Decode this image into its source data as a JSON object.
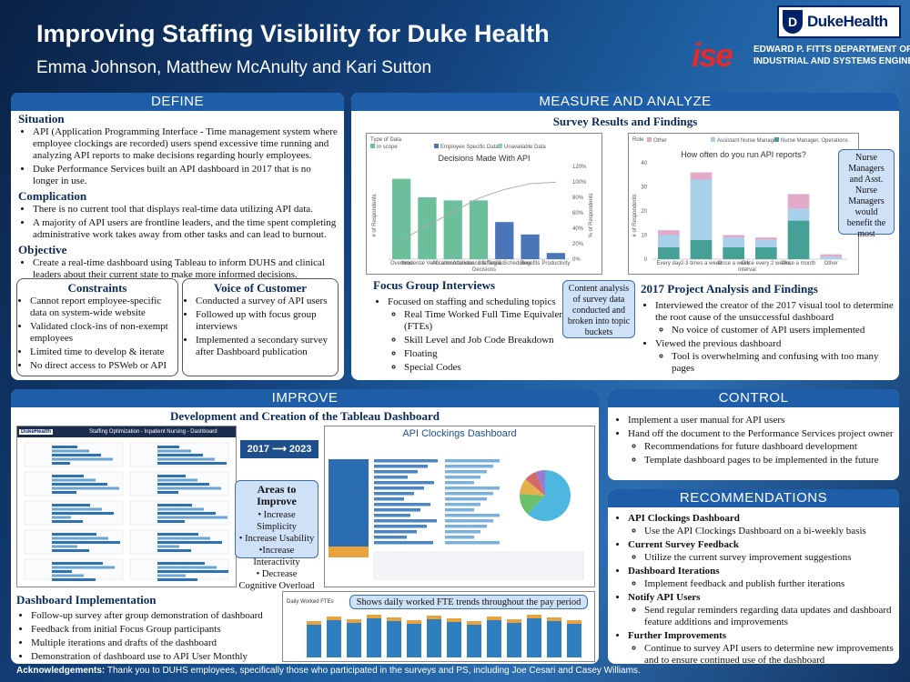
{
  "header": {
    "title": "Improving Staffing Visibility for Duke Health",
    "authors": "Emma Johnson, Matthew McAnulty and Kari Sutton",
    "duke_logo_text": "DukeHealth",
    "ise_logo_text": "ise",
    "dept_line1": "EDWARD P. FITTS DEPARTMENT OF",
    "dept_line2": "INDUSTRIAL AND SYSTEMS ENGINEERING"
  },
  "define": {
    "title": "DEFINE",
    "situation_title": "Situation",
    "situation": [
      "API (Application Programming Interface - Time management system where employee clockings are recorded) users spend excessive time running and analyzing API reports to make decisions regarding hourly employees.",
      "Duke Performance Services built an API dashboard in 2017 that is no longer in use."
    ],
    "complication_title": "Complication",
    "complication": [
      "There is no current tool that displays real-time data utilizing API data.",
      "A majority of API users are frontline leaders, and the time spent completing administrative work takes away from other tasks and can lead to burnout."
    ],
    "objective_title": "Objective",
    "objective": [
      "Create a real-time dashboard using Tableau to inform DUHS and clinical leaders about their current state to make more informed decisions."
    ],
    "constraints_title": "Constraints",
    "constraints": [
      "Cannot report employee-specific data on system-wide website",
      "Validated clock-ins of non-exempt employees",
      "Limited time to develop & iterate",
      "No direct access to PSWeb or API"
    ],
    "voc_title": "Voice of Customer",
    "voc": [
      "Conducted a survey of API users",
      "Followed up with focus group interviews",
      "Implemented a secondary survey after Dashboard publication"
    ]
  },
  "measure": {
    "title": "MEASURE AND ANALYZE",
    "survey_title": "Survey Results and Findings",
    "focus_title": "Focus Group Interviews",
    "focus_main": "Focused on staffing and scheduling topics",
    "focus_items": [
      "Real Time Worked Full Time Equivalents (FTEs)",
      "Skill Level and Job Code Breakdown",
      "Floating",
      "Special Codes"
    ],
    "callout_content": "Content analysis of survey data conducted and broken into topic buckets",
    "callout_nurse": "Nurse Managers and Asst. Nurse Managers would benefit the most",
    "project_title": "2017 Project Analysis and Findings",
    "project_items": [
      {
        "text": "Interviewed the creator of the 2017 visual tool to determine the root cause of the unsuccessful dashboard",
        "sub": [
          "No voice of customer of API users implemented"
        ]
      },
      {
        "text": "Viewed the previous dashboard",
        "sub": [
          "Tool is overwhelming and confusing with too many pages"
        ]
      }
    ]
  },
  "chart1": {
    "legend_title": "Type of Data",
    "legend": [
      "In scope",
      "Employee Specific Data",
      "Unavailable Data"
    ],
    "title": "Decisions Made With API",
    "xlabel": "Decisions",
    "ylabel": "# of Respondents",
    "y2label": "% of Respondents",
    "categories": [
      "Overtime",
      "Incidental Verification",
      "Accommodations",
      "Attendance & Tardies",
      "Staffing & Scheduling",
      "Benefits",
      "Productivity"
    ],
    "values": [
      26,
      20,
      19,
      19,
      12,
      8,
      2
    ],
    "colors": [
      "#6bbf9b",
      "#6bbf9b",
      "#6bbf9b",
      "#6bbf9b",
      "#4a76b8",
      "#4a76b8",
      "#4a76b8"
    ],
    "y2ticks": [
      "0%",
      "20%",
      "40%",
      "60%",
      "80%",
      "100%",
      "120%"
    ],
    "ylim": [
      0,
      30
    ]
  },
  "chart2": {
    "legend_title": "Role",
    "legend": [
      "Other",
      "Assistant Nurse Manager",
      "Nurse Manager, Operations"
    ],
    "title": "How often do you run API reports?",
    "xlabel": "Interval",
    "ylabel": "# of Respondents",
    "categories": [
      "Every day",
      "2-3 times a week",
      "Once a week",
      "Once every 2 weeks",
      "Once a month",
      "Other"
    ],
    "series": [
      {
        "name": "Nurse Manager, Operations",
        "values": [
          5,
          8,
          5,
          5,
          16,
          0
        ]
      },
      {
        "name": "Assistant Nurse Manager",
        "values": [
          5,
          25,
          4,
          3,
          5,
          1
        ]
      },
      {
        "name": "Other",
        "values": [
          2,
          3,
          1,
          1,
          6,
          1
        ]
      }
    ],
    "colors": [
      "#45a096",
      "#a9d0ea",
      "#e3a9c9"
    ],
    "ylim": [
      0,
      40
    ]
  },
  "improve": {
    "title": "IMPROVE",
    "subtitle": "Development and Creation of the Tableau Dashboard",
    "arrow": "2017 ⟶ 2023",
    "old_dash_title": "Staffing Optimization - Inpatient Nursing - Dashboard",
    "old_dash_logo": "DukeHealth",
    "areas_title": "Areas to Improve",
    "areas": [
      "Increase Simplicity",
      "Increase Usability",
      "Increase Interactivity",
      "Decrease Cognitive Overload"
    ],
    "new_dash_title": "API Clockings Dashboard",
    "trend_callout": "Shows daily worked FTE trends throughout the pay period",
    "trend_title": "Daily Worked FTEs",
    "impl_title": "Dashboard Implementation",
    "impl": [
      "Follow-up survey after group demonstration of dashboard",
      "Feedback from initial Focus Group participants",
      "Multiple iterations and drafts of the dashboard",
      "Demonstration of dashboard use to API User Monthly Meeting"
    ]
  },
  "control": {
    "title": "CONTROL",
    "items": [
      {
        "text": "Implement a user manual for API users",
        "sub": []
      },
      {
        "text": "Hand off the document to the Performance Services project owner",
        "sub": [
          "Recommendations for future dashboard development",
          "Template dashboard pages to be implemented in the future"
        ]
      }
    ]
  },
  "recommendations": {
    "title": "RECOMMENDATIONS",
    "items": [
      {
        "head": "API Clockings Dashboard",
        "sub": [
          "Use the API Clockings Dashboard on a bi-weekly basis"
        ]
      },
      {
        "head": "Current Survey Feedback",
        "sub": [
          "Utilize the current survey improvement suggestions"
        ]
      },
      {
        "head": "Dashboard Iterations",
        "sub": [
          "Implement feedback and publish further iterations"
        ]
      },
      {
        "head": "Notify API Users",
        "sub": [
          "Send regular reminders regarding data updates and dashboard feature additions and improvements"
        ]
      },
      {
        "head": "Further Improvements",
        "sub": [
          "Continue to survey API users to determine new improvements and to ensure continued use of the dashboard"
        ]
      }
    ]
  },
  "ack": {
    "label": "Acknowledgements:",
    "text": " Thank you to DUHS employees, specifically those who participated in the surveys and PS, including Joe Cesari and Casey Williams."
  }
}
